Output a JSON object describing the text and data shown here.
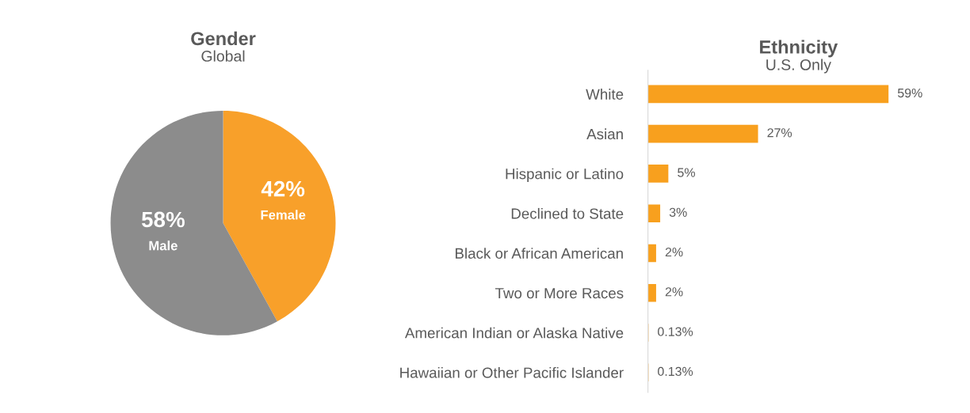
{
  "chart_data": [
    {
      "type": "pie",
      "title": "Gender",
      "subtitle": "Global",
      "categories": [
        "Female",
        "Male"
      ],
      "values": [
        42,
        58
      ],
      "colors": [
        "#f8a02a",
        "#8c8c8c"
      ],
      "value_labels": [
        "42%",
        "58%"
      ]
    },
    {
      "type": "bar",
      "orientation": "horizontal",
      "title": "Ethnicity",
      "subtitle": "U.S. Only",
      "categories": [
        "White",
        "Asian",
        "Hispanic or Latino",
        "Declined to State",
        "Black or African American",
        "Two or More Races",
        "American Indian or Alaska Native",
        "Hawaiian or Other Pacific Islander"
      ],
      "values": [
        59,
        27,
        5,
        3,
        2,
        2,
        0.13,
        0.13
      ],
      "color": "#f8a01e",
      "value_labels": [
        "59%",
        "27%",
        "5%",
        "3%",
        "2%",
        "2%",
        "0.13%",
        "0.13%"
      ]
    }
  ]
}
